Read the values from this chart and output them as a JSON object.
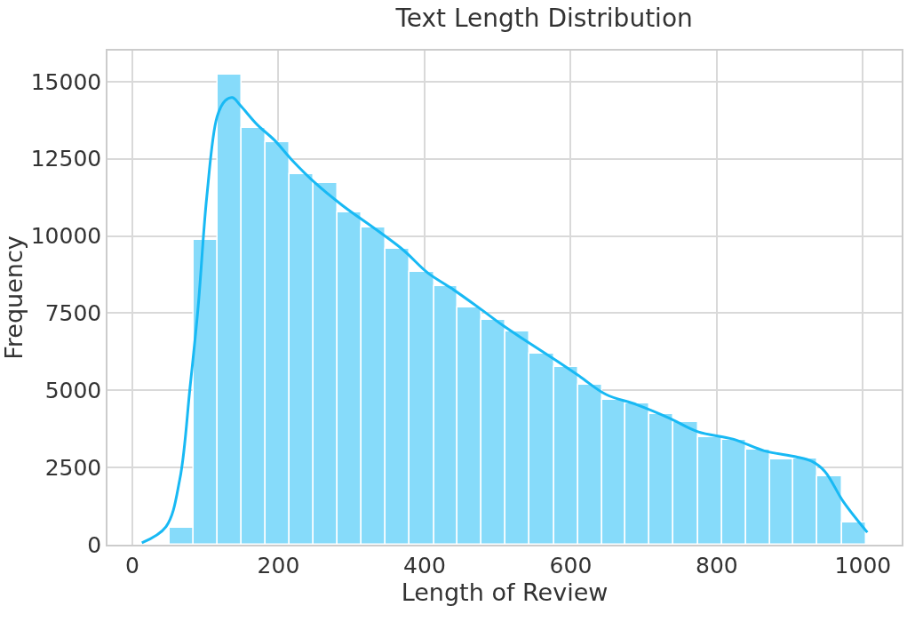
{
  "chart_data": {
    "type": "histogram",
    "title": "Text Length Distribution",
    "xlabel": "Length of Review",
    "ylabel": "Frequency",
    "bins": [
      51,
      84,
      117,
      150,
      182,
      215,
      248,
      281,
      314,
      347,
      380,
      413,
      445,
      478,
      511,
      544,
      577,
      610,
      643,
      675,
      708,
      741,
      774,
      807,
      840,
      873,
      905,
      938,
      971,
      1004
    ],
    "values": [
      550,
      9860,
      15220,
      13500,
      13040,
      12010,
      11700,
      10770,
      10280,
      9590,
      8830,
      8370,
      7680,
      7290,
      6900,
      6180,
      5750,
      5170,
      4690,
      4580,
      4240,
      3970,
      3490,
      3390,
      3090,
      2770,
      2800,
      2220,
      710
    ],
    "color": "#86dbfa",
    "series": [
      {
        "type": "line",
        "color": "#18b9f4",
        "x": [
          13,
          46,
          65,
          79,
          90,
          102,
          116,
          127,
          137,
          148,
          171,
          195,
          218,
          251,
          288,
          334,
          371,
          404,
          437,
          474,
          509,
          539,
          583,
          613,
          648,
          691,
          735,
          774,
          822,
          865,
          908,
          930,
          948,
          973,
          1006
        ],
        "values": [
          60,
          580,
          2120,
          5100,
          7680,
          11290,
          13860,
          14380,
          14480,
          14220,
          13600,
          13090,
          12470,
          11700,
          10980,
          10200,
          9540,
          8810,
          8300,
          7680,
          7070,
          6600,
          5920,
          5440,
          4870,
          4530,
          4100,
          3660,
          3420,
          3040,
          2850,
          2700,
          2370,
          1400,
          400
        ]
      }
    ],
    "xlim": [
      -34,
      1053
    ],
    "ylim": [
      0,
      16000
    ],
    "xticks": [
      0,
      200,
      400,
      600,
      800,
      1000
    ],
    "yticks": [
      0,
      2500,
      5000,
      7500,
      10000,
      12500,
      15000
    ],
    "grid": true
  }
}
